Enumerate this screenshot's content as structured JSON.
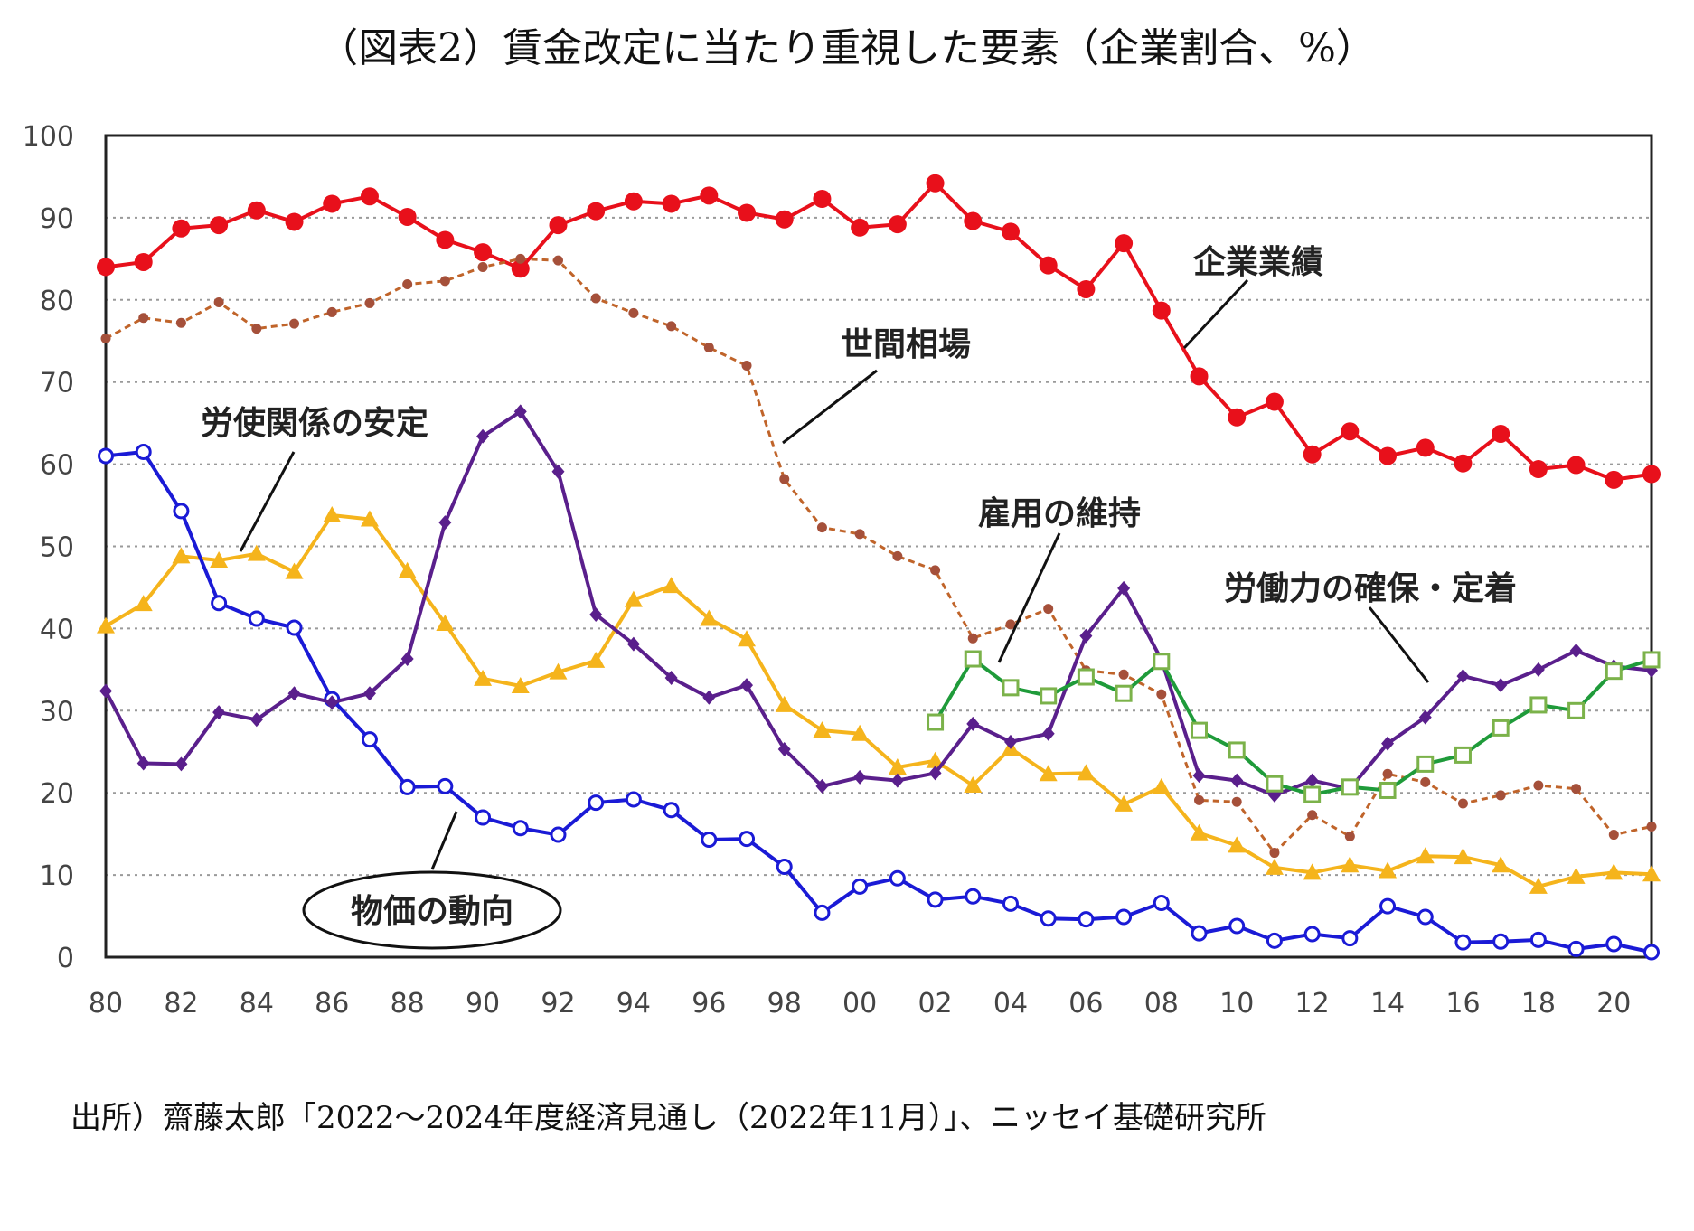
{
  "chart_data": {
    "type": "line",
    "title": "（図表2）賃金改定に当たり重視した要素（企業割合、%）",
    "source": "出所）齋藤太郎「2022～2024年度経済見通し（2022年11月）」、ニッセイ基礎研究所",
    "xlabel": "",
    "ylabel": "",
    "ylim": [
      0,
      100
    ],
    "yticks": [
      "0",
      "10",
      "20",
      "30",
      "40",
      "50",
      "60",
      "70",
      "80",
      "90",
      "100"
    ],
    "xticks": [
      "80",
      "82",
      "84",
      "86",
      "88",
      "90",
      "92",
      "94",
      "96",
      "98",
      "00",
      "02",
      "04",
      "06",
      "08",
      "10",
      "12",
      "14",
      "16",
      "18",
      "20"
    ],
    "grid": true,
    "x": [
      1980,
      1981,
      1982,
      1983,
      1984,
      1985,
      1986,
      1987,
      1988,
      1989,
      1990,
      1991,
      1992,
      1993,
      1994,
      1995,
      1996,
      1997,
      1998,
      1999,
      2000,
      2001,
      2002,
      2003,
      2004,
      2005,
      2006,
      2007,
      2008,
      2009,
      2010,
      2011,
      2012,
      2013,
      2014,
      2015,
      2016,
      2017,
      2018,
      2019,
      2020,
      2021
    ],
    "series": [
      {
        "name": "企業業績",
        "color": "#e8101b",
        "marker": "filled-circle",
        "values": [
          84,
          84.6,
          88.7,
          89.1,
          90.9,
          89.5,
          91.7,
          92.6,
          90.1,
          87.3,
          85.8,
          83.8,
          89.1,
          90.8,
          92.0,
          91.7,
          92.7,
          90.6,
          89.8,
          92.3,
          88.8,
          89.2,
          94.2,
          89.6,
          88.3,
          84.2,
          81.3,
          86.9,
          78.7,
          70.7,
          65.7,
          67.6,
          61.2,
          64.0,
          61.0,
          62.0,
          60.1,
          63.7,
          59.4,
          59.9,
          58.1,
          58.8
        ]
      },
      {
        "name": "世間相場",
        "color": "#c0642a",
        "marker": "small-dot",
        "dashed": true,
        "values": [
          75.3,
          77.8,
          77.2,
          79.7,
          76.5,
          77.1,
          78.5,
          79.6,
          81.9,
          82.3,
          84.0,
          85.0,
          84.8,
          80.2,
          78.4,
          76.8,
          74.2,
          72.0,
          58.2,
          52.3,
          51.5,
          48.8,
          47.1,
          38.8,
          40.5,
          42.4,
          34.9,
          34.4,
          32.0,
          19.1,
          18.9,
          12.7,
          17.3,
          14.7,
          22.3,
          21.3,
          18.7,
          19.7,
          20.9,
          20.5,
          14.9,
          15.9
        ]
      },
      {
        "name": "労使関係の安定",
        "color": "#f5b41c",
        "marker": "triangle",
        "values": [
          40.3,
          43.0,
          48.8,
          48.3,
          49.1,
          46.9,
          53.8,
          53.3,
          47.0,
          40.6,
          33.9,
          33.0,
          34.7,
          36.1,
          43.5,
          45.2,
          41.2,
          38.7,
          30.7,
          27.6,
          27.2,
          23.1,
          23.9,
          20.9,
          25.4,
          22.3,
          22.4,
          18.6,
          20.7,
          15.1,
          13.6,
          10.9,
          10.3,
          11.2,
          10.5,
          12.3,
          12.2,
          11.2,
          8.6,
          9.8,
          10.3,
          10.1
        ]
      },
      {
        "name": "物価の動向",
        "color": "#1a1ad6",
        "marker": "open-circle",
        "values": [
          61.0,
          61.5,
          54.3,
          43.1,
          41.2,
          40.1,
          31.4,
          26.5,
          20.7,
          20.8,
          17.0,
          15.7,
          14.9,
          18.8,
          19.2,
          17.9,
          14.3,
          14.4,
          11.0,
          5.4,
          8.6,
          9.6,
          7.0,
          7.4,
          6.5,
          4.7,
          4.6,
          4.9,
          6.6,
          2.9,
          3.8,
          2.0,
          2.8,
          2.3,
          6.2,
          4.9,
          1.8,
          1.9,
          2.1,
          1.0,
          1.6,
          0.6
        ]
      },
      {
        "name": "労働力の確保・定着",
        "color": "#5a1f8c",
        "marker": "diamond",
        "values": [
          32.4,
          23.6,
          23.5,
          29.8,
          28.9,
          32.1,
          31.0,
          32.1,
          36.3,
          52.9,
          63.4,
          66.4,
          59.1,
          41.7,
          38.1,
          34.0,
          31.6,
          33.1,
          25.3,
          20.8,
          21.9,
          21.5,
          22.4,
          28.4,
          26.2,
          27.2,
          39.1,
          44.9,
          36.2,
          22.1,
          21.5,
          19.7,
          21.5,
          20.5,
          26.0,
          29.2,
          34.2,
          33.1,
          35.0,
          37.3,
          35.4,
          34.9
        ]
      },
      {
        "name": "雇用の維持",
        "color": "#1f9b3a",
        "marker": "open-square",
        "markerColor": "#7bb24a",
        "values": [
          null,
          null,
          null,
          null,
          null,
          null,
          null,
          null,
          null,
          null,
          null,
          null,
          null,
          null,
          null,
          null,
          null,
          null,
          null,
          null,
          null,
          null,
          28.6,
          36.3,
          32.8,
          31.8,
          34.1,
          32.1,
          36.0,
          27.6,
          25.2,
          21.1,
          19.8,
          20.7,
          20.3,
          23.5,
          24.6,
          27.9,
          30.7,
          30.0,
          34.8,
          36.2
        ]
      }
    ],
    "annotations": [
      {
        "text": "企業業績"
      },
      {
        "text": "世間相場"
      },
      {
        "text": "労使関係の安定"
      },
      {
        "text": "雇用の維持"
      },
      {
        "text": "労働力の確保・定着"
      },
      {
        "text": "物価の動向",
        "boxed": true
      }
    ]
  }
}
